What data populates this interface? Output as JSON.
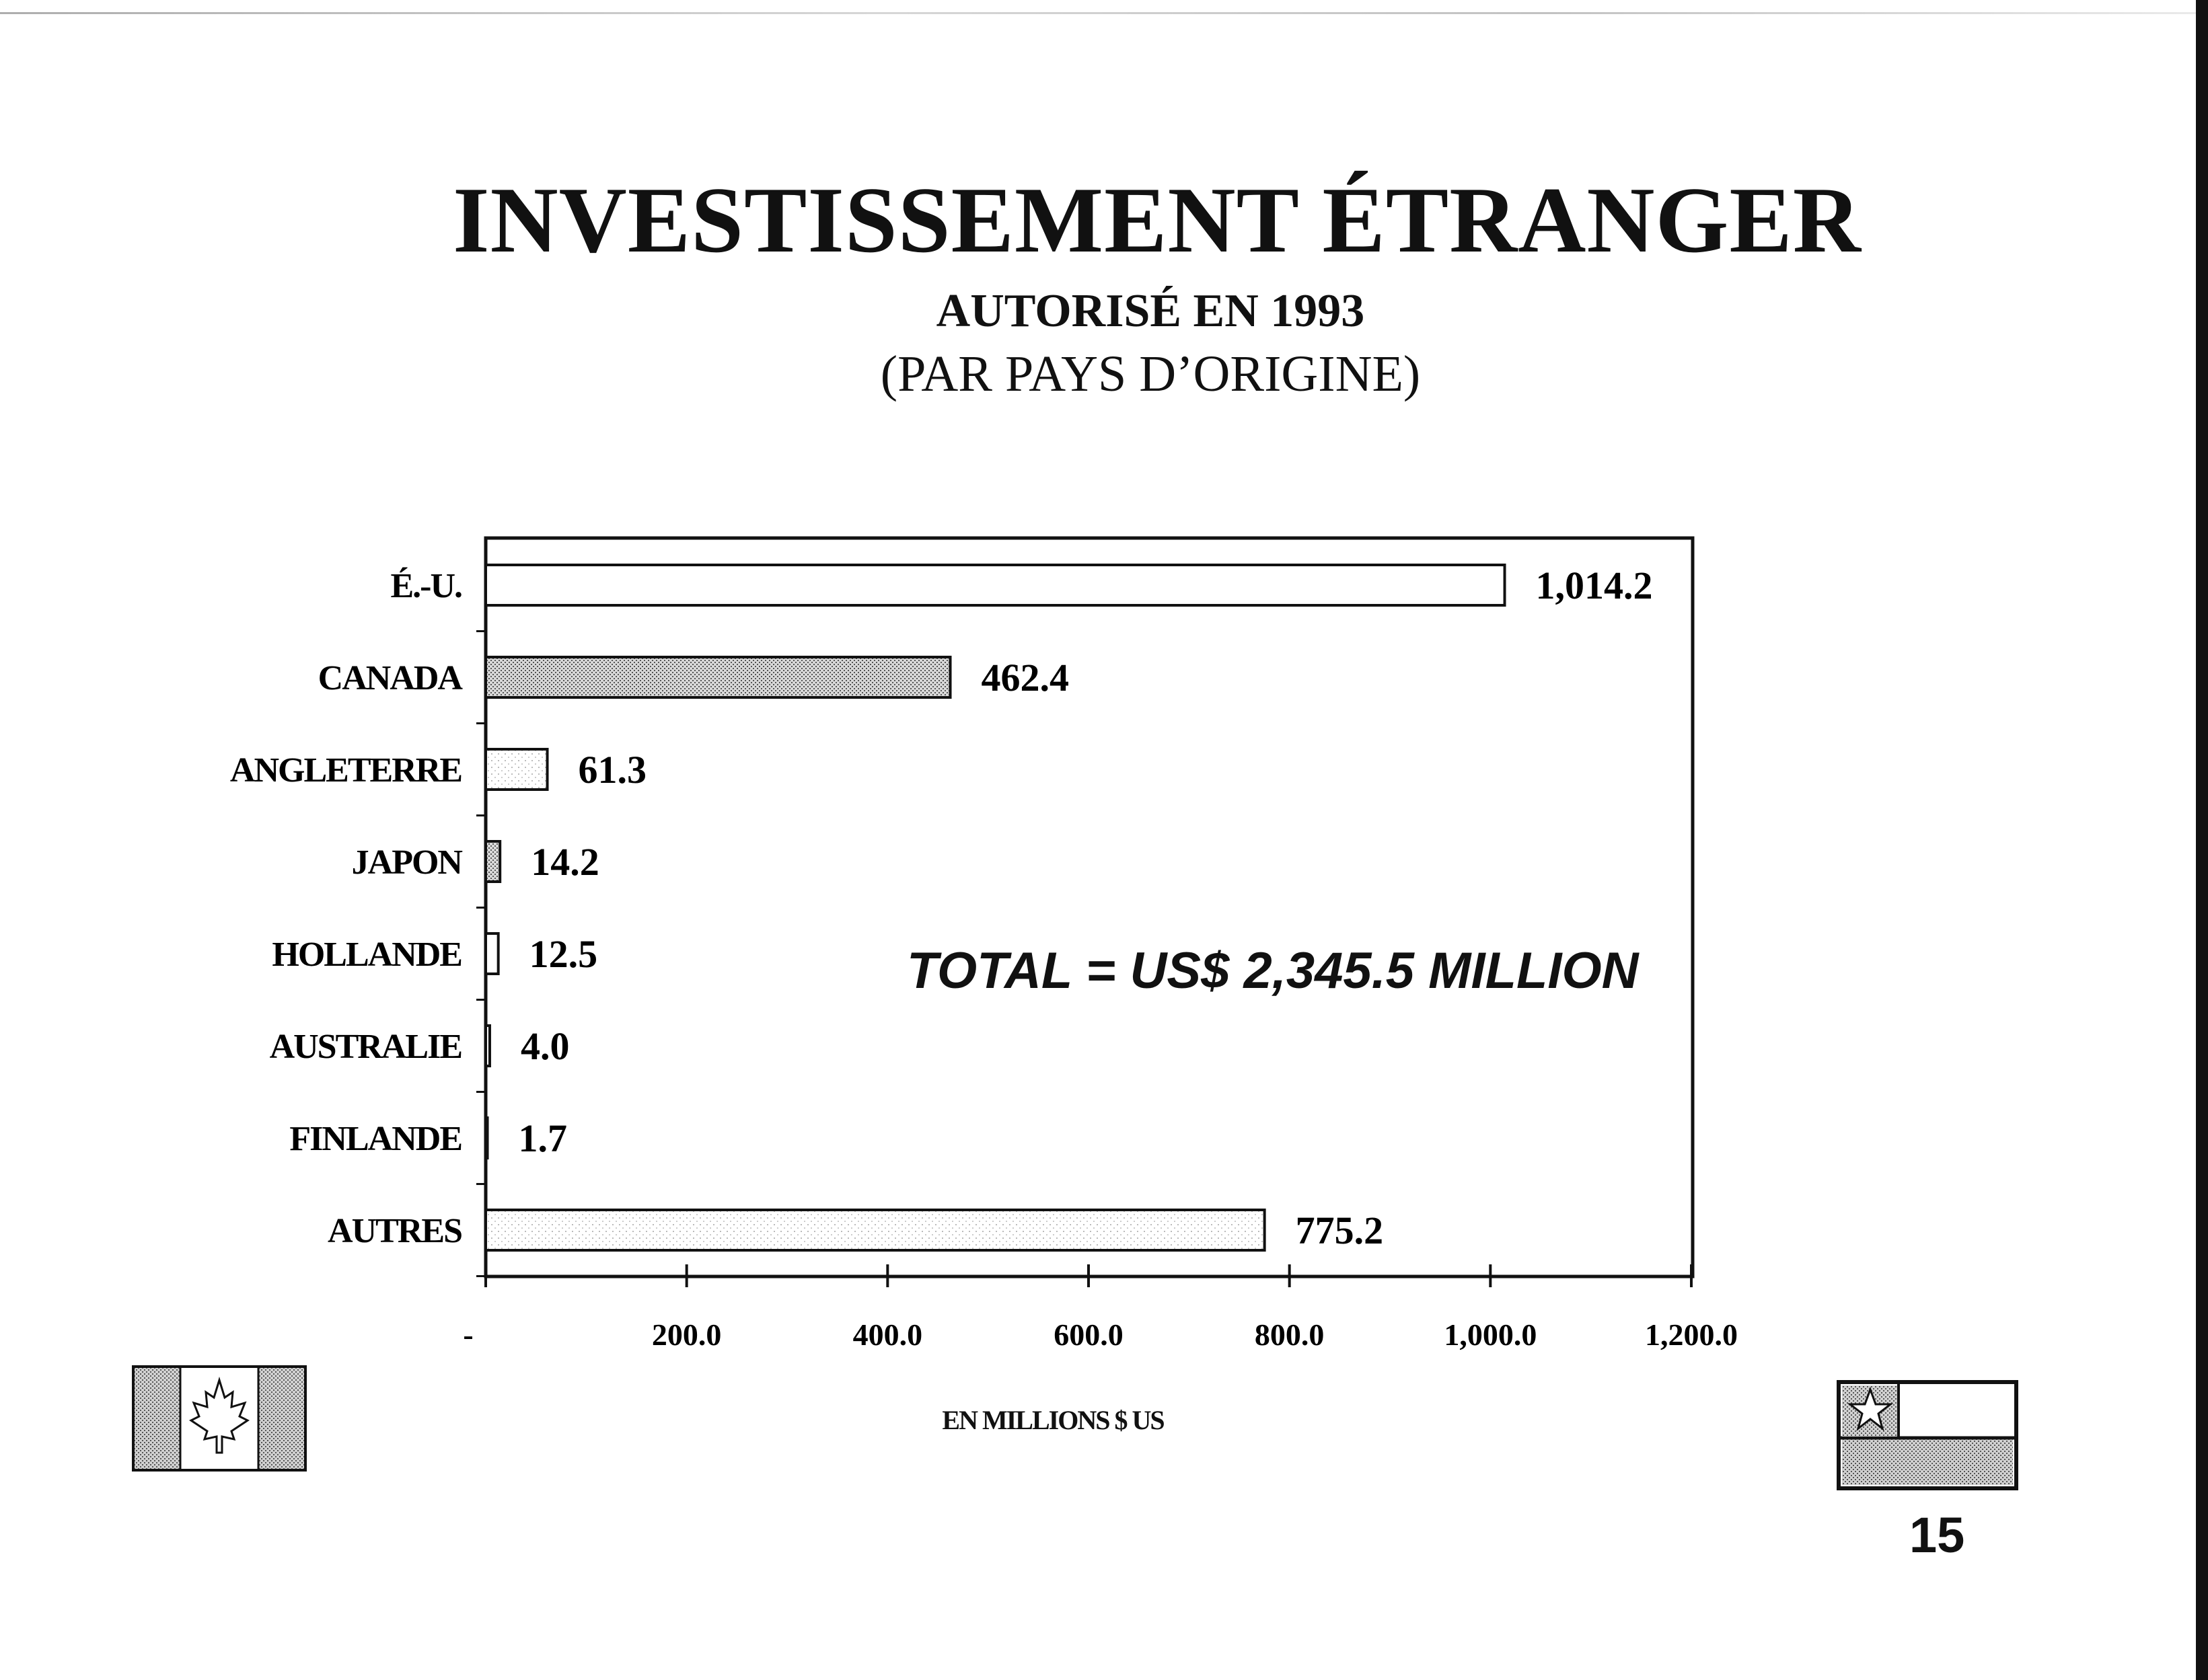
{
  "title": "INVESTISSEMENT ÉTRANGER",
  "subtitle_1": "AUTORISÉ EN 1993",
  "subtitle_2": "(PAR PAYS D’ORIGINE)",
  "total_annotation": "TOTAL = US$ 2,345.5 MILLION",
  "page_number": "15",
  "chart_data": {
    "type": "bar",
    "orientation": "horizontal",
    "title": "INVESTISSEMENT ÉTRANGER",
    "xlabel": "EN MILLIONS $ US",
    "ylabel": "",
    "categories": [
      "É.-U.",
      "CANADA",
      "ANGLETERRE",
      "JAPON",
      "HOLLANDE",
      "AUSTRALIE",
      "FINLANDE",
      "AUTRES"
    ],
    "values": [
      1014.2,
      462.4,
      61.3,
      14.2,
      12.5,
      4.0,
      1.7,
      775.2
    ],
    "value_labels": [
      "1,014.2",
      "462.4",
      "61.3",
      "14.2",
      "12.5",
      "4.0",
      "1.7",
      "775.2"
    ],
    "fills": [
      "white",
      "dark-dots",
      "light-dots",
      "dark-dots",
      "white",
      "white",
      "white",
      "light-dots"
    ],
    "xlim": [
      0,
      1200
    ],
    "x_ticks": [
      0,
      200,
      400,
      600,
      800,
      1000,
      1200
    ],
    "x_tick_labels": [
      "-",
      "200.0",
      "400.0",
      "600.0",
      "800.0",
      "1,000.0",
      "1,200.0"
    ],
    "grid": false,
    "legend": "none"
  }
}
